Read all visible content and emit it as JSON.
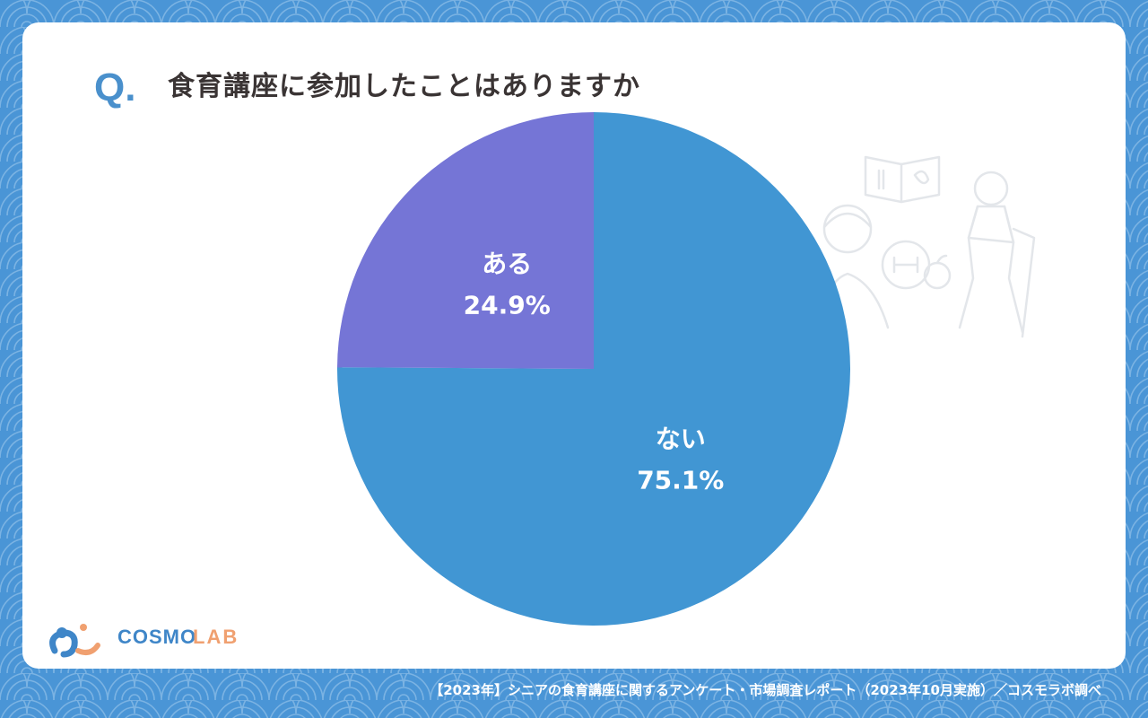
{
  "question": {
    "mark": "Q.",
    "text": "食育講座に参加したことはありますか"
  },
  "chart_data": {
    "type": "pie",
    "title": "食育講座に参加したことはありますか",
    "slices": [
      {
        "label": "ない",
        "value": 75.1,
        "display": "75.1%",
        "color": "#4196d3"
      },
      {
        "label": "ある",
        "value": 24.9,
        "display": "24.9%",
        "color": "#7575d6"
      }
    ],
    "start_angle_deg": 0,
    "direction": "clockwise"
  },
  "logo": {
    "brand1": "COSMO",
    "brand2": "LAB",
    "colors": {
      "blue": "#3f86c8",
      "orange": "#f0a070"
    }
  },
  "footer": {
    "source": "【2023年】シニアの食育講座に関するアンケート・市場調査レポート（2023年10月実施）／コスモラボ調べ"
  },
  "colors": {
    "background": "#4a95d6",
    "card": "#ffffff",
    "accent": "#4a90cc",
    "text": "#3a3434"
  }
}
